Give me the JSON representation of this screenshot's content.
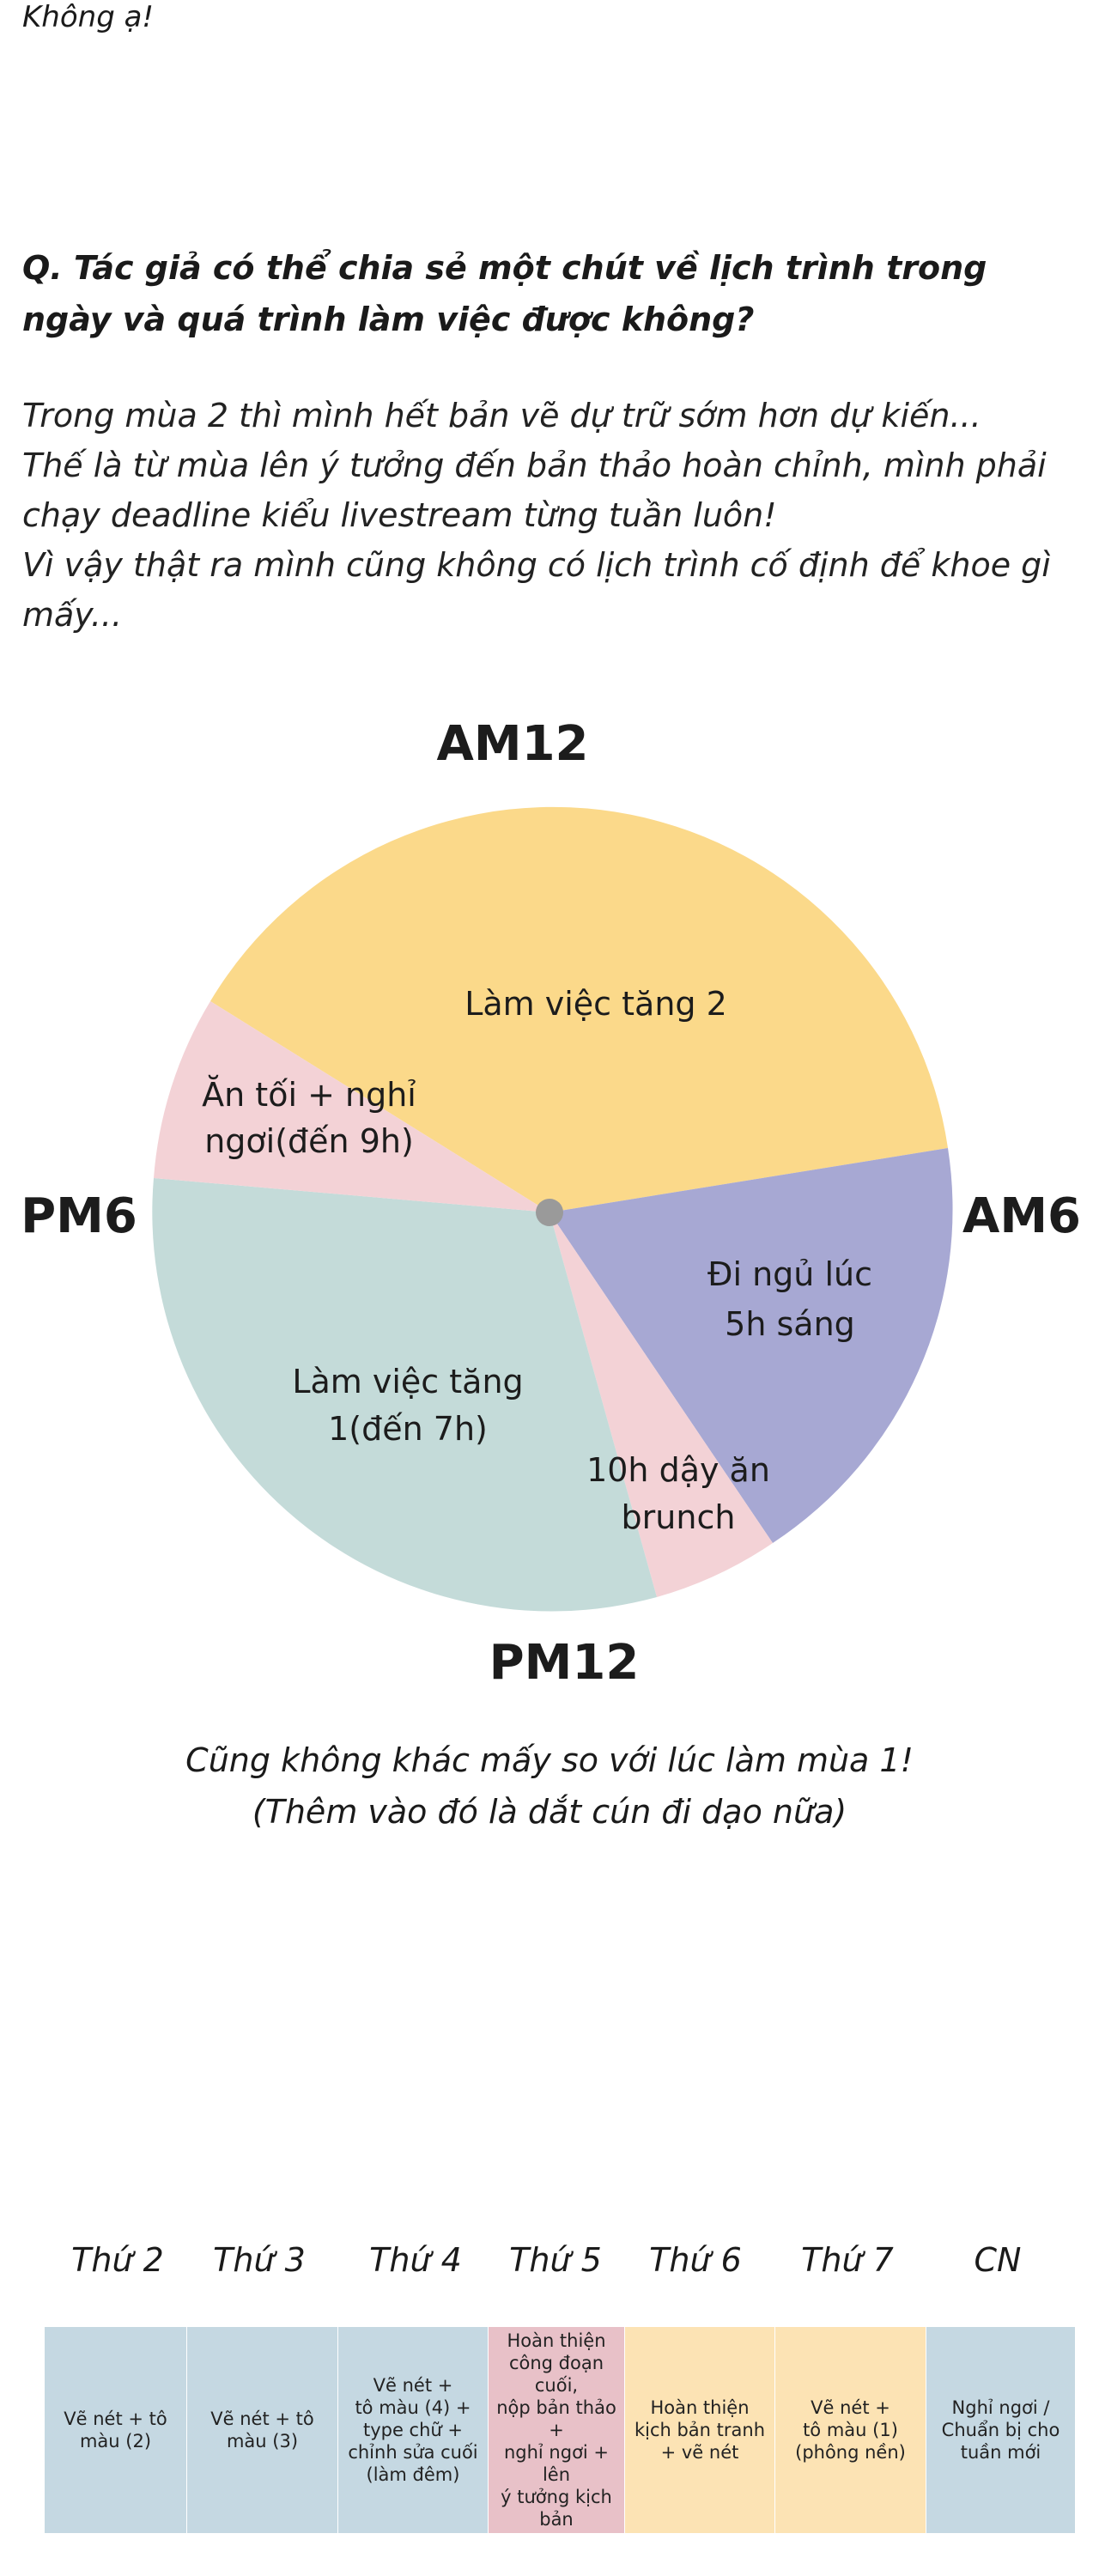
{
  "intro": "Không ạ!",
  "question": "Q. Tác giả có thể chia sẻ một chút về lịch trình trong ngày và quá trình làm việc được không?",
  "answer": [
    "Trong mùa 2 thì mình hết bản vẽ dự trữ sớm hơn dự kiến...",
    "Thế là từ mùa lên ý tưởng đến bản thảo hoàn chỉnh, mình phải chạy deadline kiểu livestream từng tuần luôn!",
    "Vì vậy thật ra mình cũng không có lịch trình cố định để khoe gì mấy..."
  ],
  "clock": {
    "top": "AM12",
    "right": "AM6",
    "bottom": "PM12",
    "left": "PM6",
    "segments": [
      {
        "label_1": "Làm việc tăng 2",
        "label_2": "",
        "color": "#fbd98a"
      },
      {
        "label_1": "Đi ngủ lúc",
        "label_2": "5h sáng",
        "color": "#a7a8d3"
      },
      {
        "label_1": "10h dậy ăn",
        "label_2": "brunch",
        "color": "#f3d2d6"
      },
      {
        "label_1": "Làm việc tăng",
        "label_2": "1(đến 7h)",
        "color": "#c4dbd9"
      },
      {
        "label_1": "Ăn tối + nghỉ",
        "label_2": "ngơi(đến 9h)",
        "color": "#f3d2d6"
      }
    ]
  },
  "caption": [
    "Cũng không khác mấy so với lúc làm mùa 1!",
    "(Thêm vào đó là dắt cún đi dạo nữa)"
  ],
  "week": [
    {
      "day": "Thứ 2",
      "text": "Vẽ nét + tô\nmàu (2)",
      "color": "#c5d8e2"
    },
    {
      "day": "Thứ 3",
      "text": "Vẽ nét + tô\nmàu (3)",
      "color": "#c5d8e2"
    },
    {
      "day": "Thứ 4",
      "text": "Vẽ nét +\ntô màu (4) +\ntype chữ +\nchỉnh sửa cuối\n(làm đêm)",
      "color": "#c5d8e2"
    },
    {
      "day": "Thứ 5",
      "text": "Hoàn thiện\ncông đoạn cuối,\nnộp bản thảo +\nnghỉ ngơi + lên\ný tưởng kịch\nbản",
      "color": "#e8c1c8"
    },
    {
      "day": "Thứ 6",
      "text": "Hoàn thiện\nkịch bản tranh\n+ vẽ nét",
      "color": "#fce3b4"
    },
    {
      "day": "Thứ 7",
      "text": "Vẽ nét +\ntô màu (1)\n(phông nền)",
      "color": "#fce3b4"
    },
    {
      "day": "CN",
      "text": "Nghỉ ngơi /\nChuẩn bị cho\ntuần mới",
      "color": "#c5d8e2"
    }
  ]
}
